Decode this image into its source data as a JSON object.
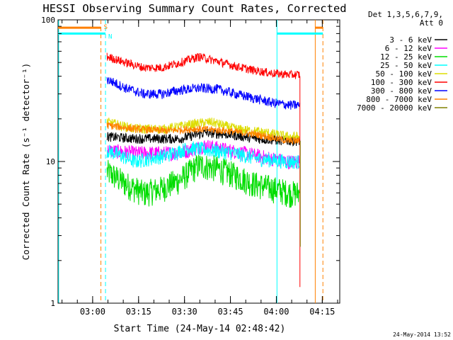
{
  "chart_data": {
    "type": "line",
    "title": "HESSI Observing Summary Count Rates, Corrected",
    "xlabel": "Start Time (24-May-14 02:48:42)",
    "ylabel": "Corrected Count Rate (s⁻¹ detector⁻¹)",
    "yscale": "log",
    "ylim": [
      1,
      100
    ],
    "xlim_minutes": [
      0,
      92
    ],
    "x_ticks": [
      {
        "label": "03:00",
        "minute": 11.3
      },
      {
        "label": "03:15",
        "minute": 26.3
      },
      {
        "label": "03:30",
        "minute": 41.3
      },
      {
        "label": "03:45",
        "minute": 56.3
      },
      {
        "label": "04:00",
        "minute": 71.3
      },
      {
        "label": "04:15",
        "minute": 86.3
      }
    ],
    "y_ticks": [
      {
        "label": "1",
        "value": 1
      },
      {
        "label": "10",
        "value": 10
      },
      {
        "label": "100",
        "value": 100
      }
    ],
    "legend_header": [
      "Det 1,3,5,6,7,9,",
      "Att 0"
    ],
    "series": [
      {
        "name": "3 - 6 keV",
        "color": "#000000",
        "points": [
          [
            16,
            15
          ],
          [
            25,
            14.5
          ],
          [
            40,
            14.5
          ],
          [
            48,
            16
          ],
          [
            56,
            15.5
          ],
          [
            65,
            14.5
          ],
          [
            75,
            14
          ],
          [
            79,
            14
          ]
        ]
      },
      {
        "name": "6 - 12 keV",
        "color": "#ff00ff",
        "points": [
          [
            16,
            12
          ],
          [
            25,
            11.5
          ],
          [
            40,
            11.5
          ],
          [
            48,
            13
          ],
          [
            56,
            12
          ],
          [
            65,
            11
          ],
          [
            75,
            10
          ],
          [
            79,
            10
          ]
        ]
      },
      {
        "name": "12 - 25 keV",
        "color": "#00dd00",
        "points": [
          [
            16,
            8.5
          ],
          [
            22,
            7
          ],
          [
            28,
            6
          ],
          [
            34,
            6.5
          ],
          [
            40,
            7.5
          ],
          [
            46,
            9.5
          ],
          [
            52,
            9
          ],
          [
            58,
            8
          ],
          [
            64,
            7
          ],
          [
            70,
            6.5
          ],
          [
            76,
            6
          ],
          [
            79,
            6
          ]
        ]
      },
      {
        "name": "25 - 50 keV",
        "color": "#00ffff",
        "points": [
          [
            16,
            12
          ],
          [
            25,
            10
          ],
          [
            35,
            11
          ],
          [
            43,
            12.5
          ],
          [
            50,
            12
          ],
          [
            57,
            11.5
          ],
          [
            65,
            10.5
          ],
          [
            75,
            10
          ],
          [
            79,
            10
          ]
        ]
      },
      {
        "name": "50 - 100 keV",
        "color": "#dddd00",
        "points": [
          [
            16,
            19
          ],
          [
            25,
            17
          ],
          [
            35,
            17
          ],
          [
            45,
            18.5
          ],
          [
            50,
            19
          ],
          [
            58,
            17
          ],
          [
            68,
            16
          ],
          [
            75,
            15
          ],
          [
            79,
            15
          ]
        ]
      },
      {
        "name": "100 - 300 keV",
        "color": "#ff0000",
        "points": [
          [
            16,
            55
          ],
          [
            22,
            50
          ],
          [
            28,
            46
          ],
          [
            34,
            46
          ],
          [
            40,
            50
          ],
          [
            46,
            55
          ],
          [
            52,
            51
          ],
          [
            58,
            47
          ],
          [
            64,
            44
          ],
          [
            70,
            42
          ],
          [
            76,
            41
          ],
          [
            79,
            41
          ]
        ]
      },
      {
        "name": "300 - 800 keV",
        "color": "#0000ff",
        "points": [
          [
            16,
            38
          ],
          [
            22,
            33
          ],
          [
            28,
            30
          ],
          [
            34,
            30
          ],
          [
            40,
            32
          ],
          [
            46,
            33
          ],
          [
            52,
            32.5
          ],
          [
            58,
            30
          ],
          [
            64,
            28
          ],
          [
            70,
            26
          ],
          [
            76,
            25
          ],
          [
            79,
            25
          ]
        ]
      },
      {
        "name": "800 - 7000 keV",
        "color": "#ff8000",
        "points": [
          [
            16,
            18
          ],
          [
            25,
            17
          ],
          [
            35,
            16.5
          ],
          [
            45,
            17
          ],
          [
            55,
            16.5
          ],
          [
            65,
            15.5
          ],
          [
            75,
            14
          ],
          [
            79,
            14
          ]
        ]
      },
      {
        "name": "7000 - 20000 keV",
        "color": "#808000",
        "points": []
      }
    ],
    "flags": [
      {
        "label": "S",
        "color": "#ff8000",
        "value": 88,
        "segments": [
          [
            0,
            14
          ],
          [
            84,
            86.5
          ]
        ]
      },
      {
        "label": "N",
        "color": "#00ffff",
        "value": 80,
        "segments": [
          [
            0,
            15.5
          ],
          [
            71.5,
            86.5
          ]
        ]
      }
    ],
    "vertical_markers": [
      {
        "minute": 14.0,
        "color": "#ff8000",
        "style": "dashed"
      },
      {
        "minute": 15.5,
        "color": "#00ffff",
        "style": "dashed"
      },
      {
        "minute": 71.5,
        "color": "#00ffff",
        "style": "solid"
      },
      {
        "minute": 84.0,
        "color": "#ff8000",
        "style": "solid"
      },
      {
        "minute": 86.5,
        "color": "#ff8000",
        "style": "dashed"
      },
      {
        "minute": 0.2,
        "color": "#00ffff",
        "style": "solid"
      }
    ],
    "data_end_minute": 79,
    "footer_timestamp": "24-May-2014 13:52",
    "colors": {
      "axes": "#000000",
      "background": "#ffffff"
    }
  }
}
